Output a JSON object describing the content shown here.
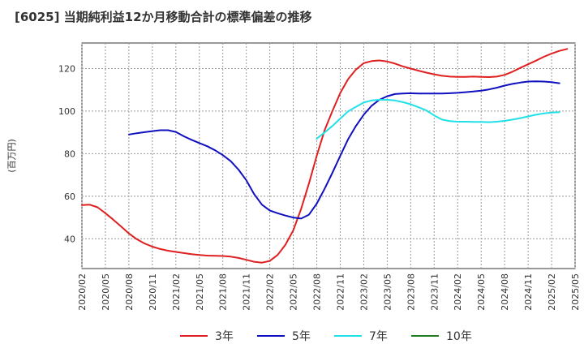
{
  "chart_data": {
    "type": "line",
    "title": "[6025]  当期純利益12か月移動合計の標準偏差の推移",
    "ylabel": "(百万円)",
    "xlabel": "",
    "ylim": [
      26,
      132
    ],
    "yticks": [
      40,
      60,
      80,
      100,
      120
    ],
    "xticks": [
      "2020/02",
      "2020/05",
      "2020/08",
      "2020/11",
      "2021/02",
      "2021/05",
      "2021/08",
      "2021/11",
      "2022/02",
      "2022/05",
      "2022/08",
      "2022/11",
      "2023/02",
      "2023/05",
      "2023/08",
      "2023/11",
      "2024/02",
      "2024/05",
      "2024/08",
      "2024/11",
      "2025/02",
      "2025/05"
    ],
    "grid": true,
    "legend_position": "bottom",
    "series": [
      {
        "name": "3年",
        "color": "#e02020",
        "values": [
          [
            "2020/02",
            55.8
          ],
          [
            "2020/03",
            56
          ],
          [
            "2020/04",
            54.8
          ],
          [
            "2020/05",
            52
          ],
          [
            "2020/06",
            49
          ],
          [
            "2020/07",
            45.8
          ],
          [
            "2020/08",
            42.5
          ],
          [
            "2020/09",
            39.8
          ],
          [
            "2020/10",
            37.8
          ],
          [
            "2020/11",
            36.3
          ],
          [
            "2020/12",
            35.2
          ],
          [
            "2021/01",
            34.4
          ],
          [
            "2021/02",
            33.8
          ],
          [
            "2021/03",
            33.3
          ],
          [
            "2021/04",
            32.8
          ],
          [
            "2021/05",
            32.4
          ],
          [
            "2021/06",
            32.1
          ],
          [
            "2021/07",
            32
          ],
          [
            "2021/08",
            31.9
          ],
          [
            "2021/09",
            31.6
          ],
          [
            "2021/10",
            31
          ],
          [
            "2021/11",
            30.1
          ],
          [
            "2021/12",
            29.2
          ],
          [
            "2022/01",
            28.8
          ],
          [
            "2022/02",
            29.6
          ],
          [
            "2022/03",
            32.4
          ],
          [
            "2022/04",
            37.2
          ],
          [
            "2022/05",
            44
          ],
          [
            "2022/06",
            54
          ],
          [
            "2022/07",
            66
          ],
          [
            "2022/08",
            79
          ],
          [
            "2022/09",
            91
          ],
          [
            "2022/10",
            100
          ],
          [
            "2022/11",
            108.5
          ],
          [
            "2022/12",
            115
          ],
          [
            "2023/01",
            119.5
          ],
          [
            "2023/02",
            122.5
          ],
          [
            "2023/03",
            123.5
          ],
          [
            "2023/04",
            123.8
          ],
          [
            "2023/05",
            123.3
          ],
          [
            "2023/06",
            122.3
          ],
          [
            "2023/07",
            121
          ],
          [
            "2023/08",
            120
          ],
          [
            "2023/09",
            119
          ],
          [
            "2023/10",
            118.1
          ],
          [
            "2023/11",
            117.3
          ],
          [
            "2023/12",
            116.6
          ],
          [
            "2024/01",
            116.2
          ],
          [
            "2024/02",
            116.1
          ],
          [
            "2024/03",
            116.1
          ],
          [
            "2024/04",
            116.2
          ],
          [
            "2024/05",
            116.1
          ],
          [
            "2024/06",
            116
          ],
          [
            "2024/07",
            116.2
          ],
          [
            "2024/08",
            117
          ],
          [
            "2024/09",
            118.5
          ],
          [
            "2024/10",
            120.3
          ],
          [
            "2024/11",
            122
          ],
          [
            "2024/12",
            123.7
          ],
          [
            "2025/01",
            125.5
          ],
          [
            "2025/02",
            127
          ],
          [
            "2025/03",
            128.3
          ],
          [
            "2025/04",
            129.2
          ]
        ]
      },
      {
        "name": "5年",
        "color": "#1010c0",
        "values": [
          [
            "2020/08",
            89
          ],
          [
            "2020/09",
            89.6
          ],
          [
            "2020/10",
            90.1
          ],
          [
            "2020/11",
            90.6
          ],
          [
            "2020/12",
            91
          ],
          [
            "2021/01",
            91
          ],
          [
            "2021/02",
            90.2
          ],
          [
            "2021/03",
            88.2
          ],
          [
            "2021/04",
            86.5
          ],
          [
            "2021/05",
            85
          ],
          [
            "2021/06",
            83.5
          ],
          [
            "2021/07",
            81.6
          ],
          [
            "2021/08",
            79.3
          ],
          [
            "2021/09",
            76.5
          ],
          [
            "2021/10",
            72.5
          ],
          [
            "2021/11",
            67.5
          ],
          [
            "2021/12",
            61
          ],
          [
            "2022/01",
            56
          ],
          [
            "2022/02",
            53.3
          ],
          [
            "2022/03",
            52
          ],
          [
            "2022/04",
            50.9
          ],
          [
            "2022/05",
            50
          ],
          [
            "2022/06",
            49.5
          ],
          [
            "2022/07",
            51.3
          ],
          [
            "2022/08",
            56.5
          ],
          [
            "2022/09",
            63.5
          ],
          [
            "2022/10",
            71
          ],
          [
            "2022/11",
            79
          ],
          [
            "2022/12",
            86.7
          ],
          [
            "2023/01",
            93
          ],
          [
            "2023/02",
            98.3
          ],
          [
            "2023/03",
            102.5
          ],
          [
            "2023/04",
            105.3
          ],
          [
            "2023/05",
            107
          ],
          [
            "2023/06",
            108
          ],
          [
            "2023/07",
            108.3
          ],
          [
            "2023/08",
            108.4
          ],
          [
            "2023/09",
            108.3
          ],
          [
            "2023/10",
            108.3
          ],
          [
            "2023/11",
            108.3
          ],
          [
            "2023/12",
            108.3
          ],
          [
            "2024/01",
            108.4
          ],
          [
            "2024/02",
            108.6
          ],
          [
            "2024/03",
            108.9
          ],
          [
            "2024/04",
            109.2
          ],
          [
            "2024/05",
            109.6
          ],
          [
            "2024/06",
            110.2
          ],
          [
            "2024/07",
            111
          ],
          [
            "2024/08",
            112
          ],
          [
            "2024/09",
            112.8
          ],
          [
            "2024/10",
            113.4
          ],
          [
            "2024/11",
            113.9
          ],
          [
            "2024/12",
            114
          ],
          [
            "2025/01",
            113.9
          ],
          [
            "2025/02",
            113.6
          ],
          [
            "2025/03",
            113.1
          ]
        ]
      },
      {
        "name": "7年",
        "color": "#20e0e8",
        "values": [
          [
            "2022/08",
            87
          ],
          [
            "2022/09",
            90
          ],
          [
            "2022/10",
            93
          ],
          [
            "2022/11",
            96.5
          ],
          [
            "2022/12",
            99.8
          ],
          [
            "2023/01",
            102
          ],
          [
            "2023/02",
            104
          ],
          [
            "2023/03",
            105
          ],
          [
            "2023/04",
            105.3
          ],
          [
            "2023/05",
            105.3
          ],
          [
            "2023/06",
            105
          ],
          [
            "2023/07",
            104.2
          ],
          [
            "2023/08",
            103.2
          ],
          [
            "2023/09",
            101.8
          ],
          [
            "2023/10",
            100.3
          ],
          [
            "2023/11",
            98
          ],
          [
            "2023/12",
            96
          ],
          [
            "2024/01",
            95.3
          ],
          [
            "2024/02",
            95
          ],
          [
            "2024/03",
            95
          ],
          [
            "2024/04",
            94.9
          ],
          [
            "2024/05",
            94.9
          ],
          [
            "2024/06",
            94.8
          ],
          [
            "2024/07",
            95
          ],
          [
            "2024/08",
            95.4
          ],
          [
            "2024/09",
            96
          ],
          [
            "2024/10",
            96.7
          ],
          [
            "2024/11",
            97.5
          ],
          [
            "2024/12",
            98.3
          ],
          [
            "2025/01",
            98.9
          ],
          [
            "2025/02",
            99.3
          ],
          [
            "2025/03",
            99.5
          ]
        ]
      },
      {
        "name": "10年",
        "color": "#208020",
        "values": []
      }
    ]
  }
}
